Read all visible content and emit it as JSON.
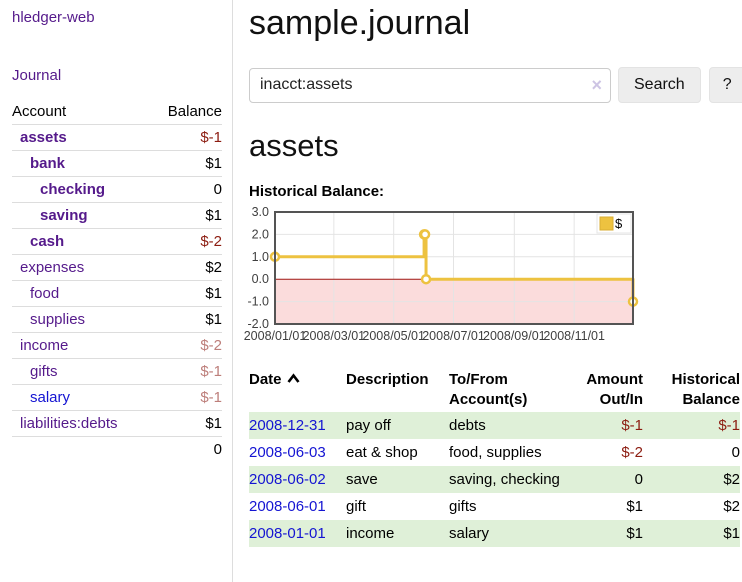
{
  "app": {
    "brand": "hledger-web",
    "nav_journal": "Journal"
  },
  "sidebar": {
    "col_account": "Account",
    "col_balance": "Balance",
    "accounts": [
      {
        "name": "assets",
        "balance": "$-1"
      },
      {
        "name": "bank",
        "balance": "$1"
      },
      {
        "name": "checking",
        "balance": "0"
      },
      {
        "name": "saving",
        "balance": "$1"
      },
      {
        "name": "cash",
        "balance": "$-2"
      },
      {
        "name": "expenses",
        "balance": "$2"
      },
      {
        "name": "food",
        "balance": "$1"
      },
      {
        "name": "supplies",
        "balance": "$1"
      },
      {
        "name": "income",
        "balance": "$-2"
      },
      {
        "name": "gifts",
        "balance": "$-1"
      },
      {
        "name": "salary",
        "balance": "$-1"
      },
      {
        "name": "liabilities:debts",
        "balance": "$1"
      }
    ],
    "total": "0"
  },
  "header": {
    "title": "sample.journal"
  },
  "search": {
    "value": "inacct:assets",
    "clear_icon": "×",
    "button": "Search",
    "help_button": "?"
  },
  "main": {
    "heading": "assets"
  },
  "chart_data": {
    "type": "line",
    "title": "Historical Balance:",
    "step": true,
    "series": [
      {
        "name": "$",
        "color": "#edc240",
        "points": [
          [
            "2008-01-01",
            1
          ],
          [
            "2008-06-01",
            2
          ],
          [
            "2008-06-02",
            2
          ],
          [
            "2008-06-03",
            0
          ],
          [
            "2008-12-31",
            -1
          ]
        ]
      }
    ],
    "x_range": [
      "2008-01-01",
      "2008-12-31"
    ],
    "x_ticks": [
      "2008/01/01",
      "2008/03/01",
      "2008/05/01",
      "2008/07/01",
      "2008/09/01",
      "2008/11/01"
    ],
    "y_ticks": [
      3.0,
      2.0,
      1.0,
      0.0,
      -1.0,
      -2.0
    ],
    "ylim": [
      -2,
      3
    ],
    "grid": true,
    "negative_region_color": "#fbdcdc",
    "zero_line_color": "#a01713",
    "legend": {
      "label": "$",
      "position": "top-right"
    }
  },
  "register": {
    "columns": [
      "Date",
      "Description",
      "To/From Account(s)",
      "Amount Out/In",
      "Historical Balance"
    ],
    "sort": {
      "column": "Date",
      "direction": "ascending"
    },
    "rows": [
      {
        "date": "2008-12-31",
        "description": "pay off",
        "accounts": "debts",
        "amount": "$-1",
        "balance": "$-1"
      },
      {
        "date": "2008-06-03",
        "description": "eat & shop",
        "accounts": "food, supplies",
        "amount": "$-2",
        "balance": "0"
      },
      {
        "date": "2008-06-02",
        "description": "save",
        "accounts": "saving, checking",
        "amount": "0",
        "balance": "$2"
      },
      {
        "date": "2008-06-01",
        "description": "gift",
        "accounts": "gifts",
        "amount": "$1",
        "balance": "$2"
      },
      {
        "date": "2008-01-01",
        "description": "income",
        "accounts": "salary",
        "amount": "$1",
        "balance": "$1"
      }
    ]
  }
}
